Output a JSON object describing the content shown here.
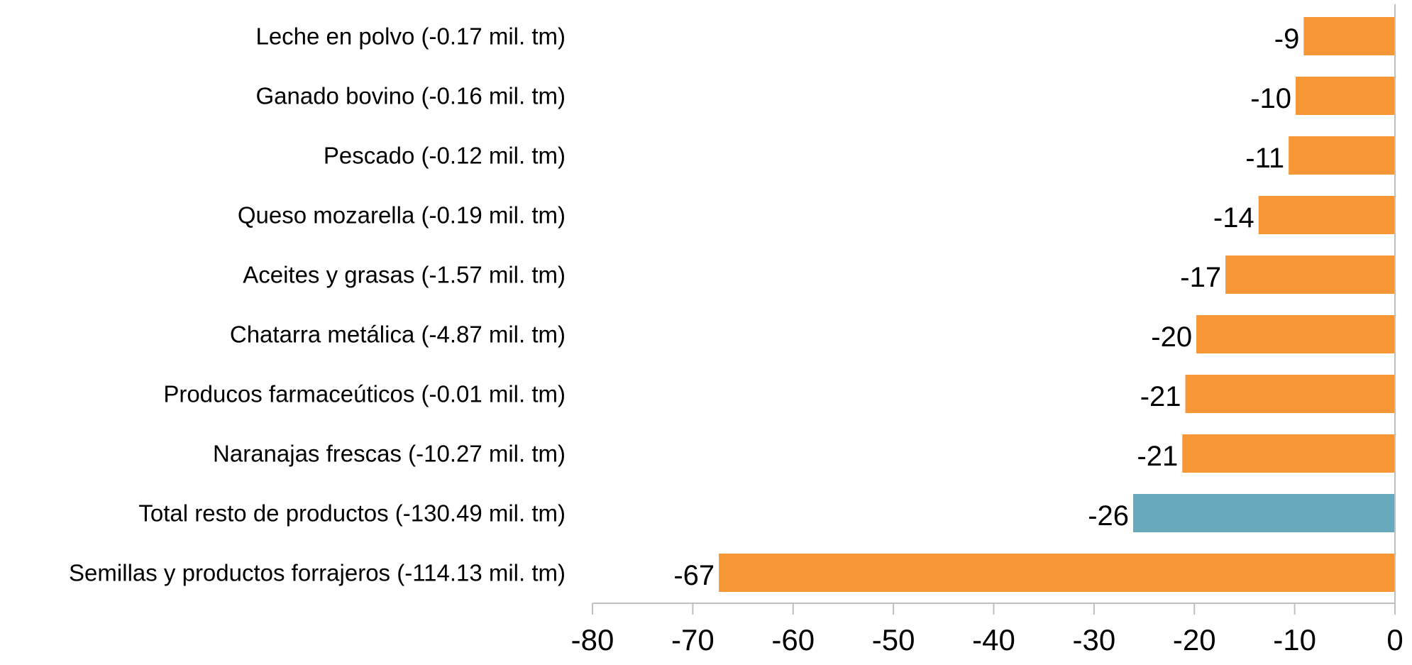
{
  "chart_data": {
    "type": "bar",
    "orientation": "horizontal",
    "title": "",
    "xlabel": "",
    "ylabel": "",
    "xlim": [
      -80,
      0
    ],
    "x_ticks": [
      -80,
      -70,
      -60,
      -50,
      -40,
      -30,
      -20,
      -10,
      0
    ],
    "x_tick_labels": [
      "-80",
      "-70",
      "-60",
      "-50",
      "-40",
      "-30",
      "-20",
      "-10",
      "0"
    ],
    "grid": false,
    "legend": "none",
    "colors": {
      "default": "#F69635",
      "highlight": "#69A9BD"
    },
    "categories": [
      "Leche en polvo (-0.17 mil. tm)",
      "Ganado bovino (-0.16 mil. tm)",
      "Pescado (-0.12 mil. tm)",
      "Queso mozarella (-0.19 mil. tm)",
      "Aceites y grasas (-1.57 mil. tm)",
      "Chatarra metálica (-4.87 mil. tm)",
      "Producos farmaceúticos (-0.01 mil. tm)",
      "Naranajas frescas (-10.27 mil. tm)",
      "Total resto de productos (-130.49 mil. tm)",
      "Semillas y productos forrajeros (-114.13 mil. tm)"
    ],
    "values": [
      -9.1,
      -9.9,
      -10.6,
      -13.6,
      -16.9,
      -19.8,
      -20.9,
      -21.2,
      -26.1,
      -67.4
    ],
    "value_labels": [
      "-9",
      "-10",
      "-11",
      "-14",
      "-17",
      "-20",
      "-21",
      "-21",
      "-26",
      "-67"
    ],
    "highlighted": [
      false,
      false,
      false,
      false,
      false,
      false,
      false,
      false,
      true,
      false
    ]
  }
}
